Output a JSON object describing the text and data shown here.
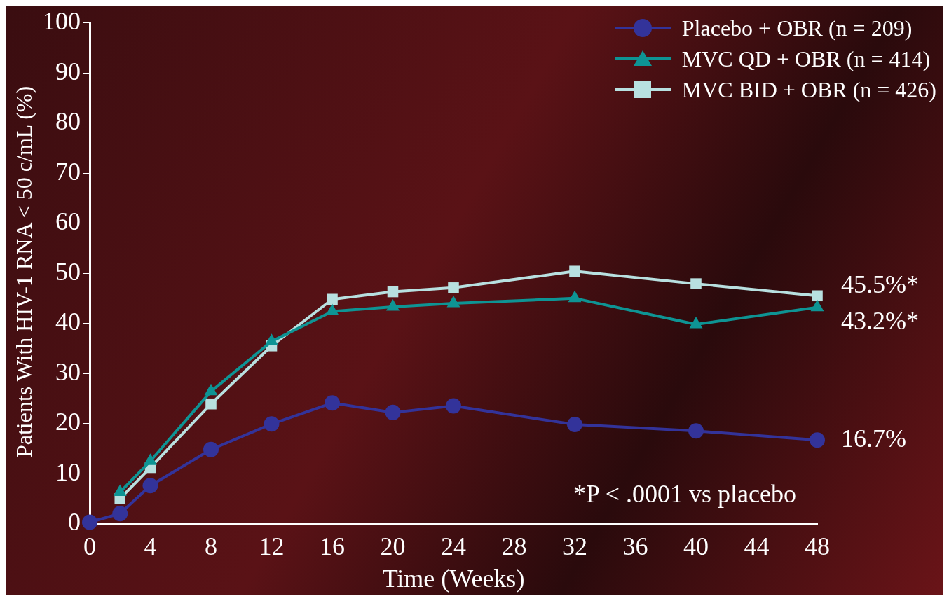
{
  "chart_data": {
    "type": "line",
    "xlabel": "Time (Weeks)",
    "ylabel": "Patients With HIV-1 RNA < 50 c/mL (%)",
    "x": [
      0,
      2,
      4,
      8,
      12,
      16,
      20,
      24,
      32,
      40,
      48
    ],
    "xlim": [
      0,
      48
    ],
    "xticks": [
      0,
      4,
      8,
      12,
      16,
      20,
      24,
      28,
      32,
      36,
      40,
      44,
      48
    ],
    "ylim": [
      0,
      100
    ],
    "yticks": [
      0,
      10,
      20,
      30,
      40,
      50,
      60,
      70,
      80,
      90,
      100
    ],
    "grid": false,
    "legend": "top right",
    "series": [
      {
        "name": "Placebo + OBR (n = 209)",
        "color": "#33339a",
        "marker": "circle",
        "values": [
          0.3,
          2,
          7.6,
          14.8,
          19.9,
          24.1,
          22.2,
          23.5,
          19.8,
          18.5,
          16.7
        ],
        "value_labels": [
          null,
          null,
          null,
          null,
          null,
          null,
          null,
          null,
          null,
          null,
          "16.7%"
        ]
      },
      {
        "name": "MVC QD + OBR (n = 414)",
        "color": "#0e9494",
        "marker": "triangle",
        "values": [
          null,
          6.3,
          12.5,
          26.4,
          36.4,
          42.4,
          43.3,
          44,
          45,
          39.8,
          43.2
        ],
        "value_labels": [
          null,
          null,
          null,
          null,
          null,
          null,
          null,
          null,
          null,
          null,
          "43.2%*"
        ]
      },
      {
        "name": "MVC BID + OBR (n = 426)",
        "color": "#b8e0e0",
        "marker": "square",
        "values": [
          null,
          5,
          11.2,
          23.9,
          35.5,
          44.8,
          46.3,
          47.1,
          50.4,
          47.9,
          45.5
        ],
        "value_labels": [
          null,
          null,
          null,
          null,
          null,
          null,
          null,
          null,
          null,
          null,
          "45.5%*"
        ]
      }
    ],
    "annotations": [
      "*P < .0001 vs placebo"
    ]
  }
}
